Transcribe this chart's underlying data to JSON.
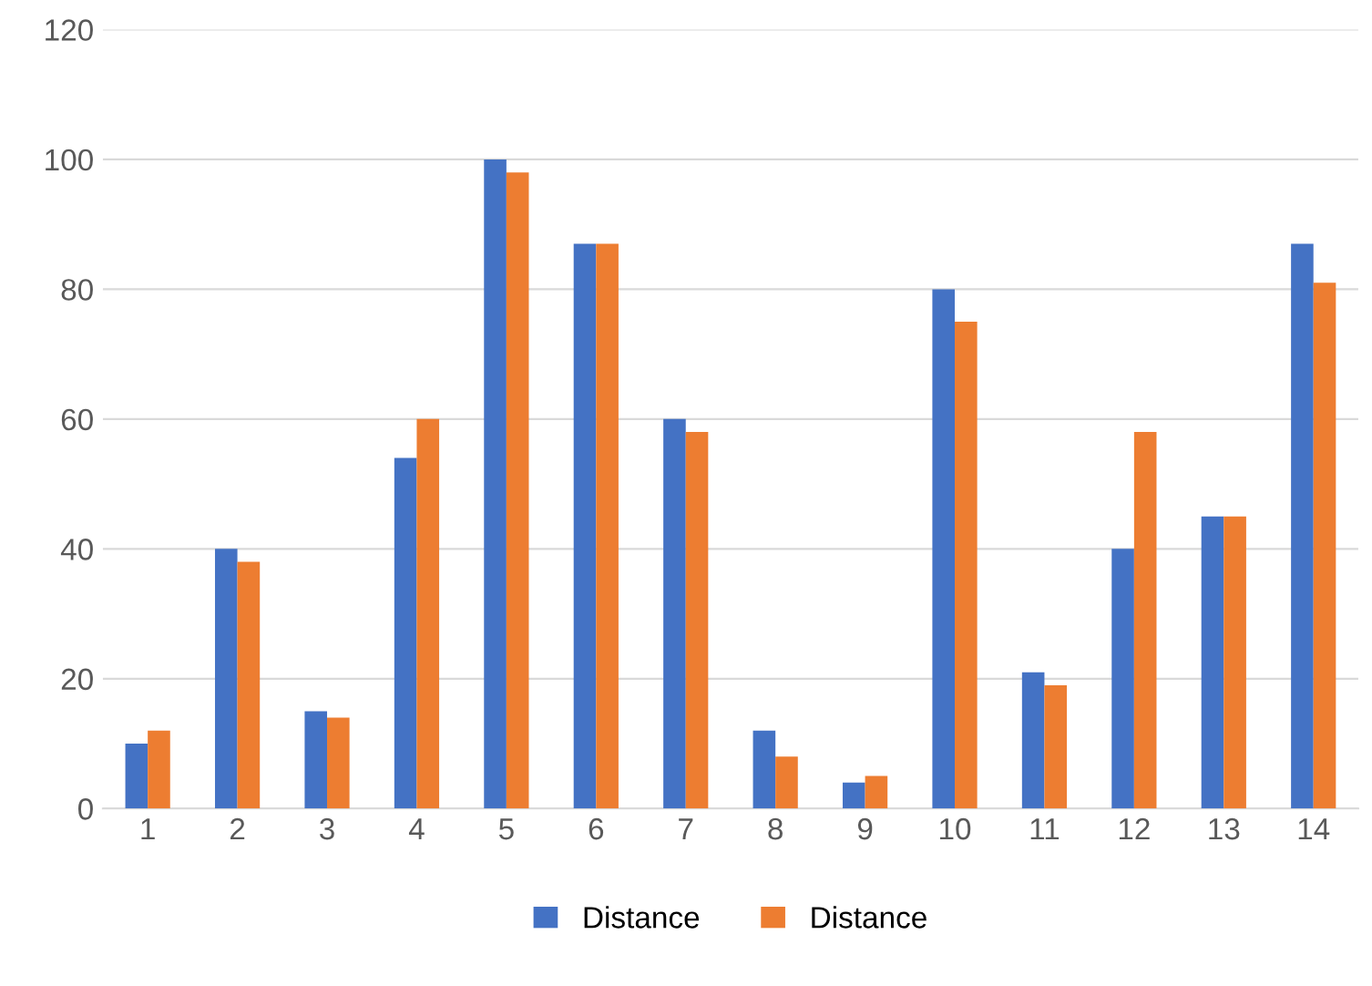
{
  "chart_data": {
    "type": "bar",
    "categories": [
      "1",
      "2",
      "3",
      "4",
      "5",
      "6",
      "7",
      "8",
      "9",
      "10",
      "11",
      "12",
      "13",
      "14"
    ],
    "series": [
      {
        "name": "Distance",
        "color": "#4472c4",
        "values": [
          10,
          40,
          15,
          54,
          100,
          87,
          60,
          12,
          4,
          80,
          21,
          40,
          45,
          87
        ]
      },
      {
        "name": "Distance",
        "color": "#ed7d31",
        "values": [
          12,
          38,
          14,
          60,
          98,
          87,
          58,
          8,
          5,
          75,
          19,
          58,
          45,
          81
        ]
      }
    ],
    "ylim": [
      0,
      120
    ],
    "yticks": [
      0,
      20,
      40,
      60,
      80,
      100,
      120
    ],
    "grid": "y",
    "legend": "bottom"
  }
}
